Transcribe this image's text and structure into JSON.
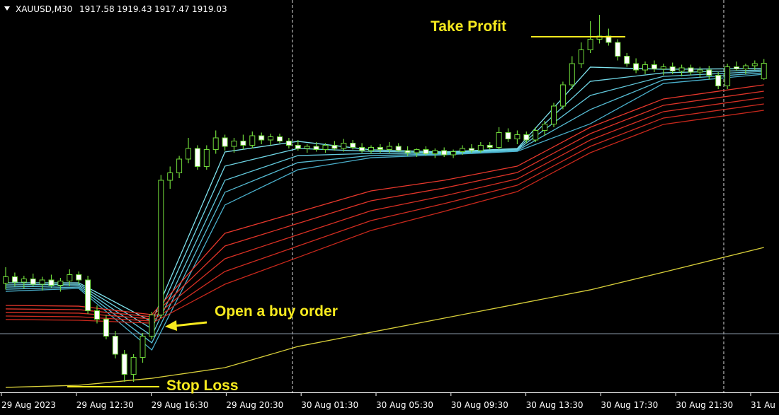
{
  "chart_data": {
    "type": "candlestick",
    "symbol": "XAUUSD,M30",
    "ohlc_info": [
      1917.58,
      1919.43,
      1917.47,
      1919.03
    ],
    "ylim": [
      1888,
      1925
    ],
    "up_color": "#000000",
    "down_color": "#ffffff",
    "wick_color": "#6fd83a",
    "candles": [
      [
        1898.3,
        1899.8,
        1897.7,
        1898.9
      ],
      [
        1898.9,
        1899.3,
        1898.0,
        1898.4
      ],
      [
        1898.4,
        1899.0,
        1897.8,
        1898.7
      ],
      [
        1898.7,
        1899.2,
        1898.0,
        1898.2
      ],
      [
        1898.2,
        1898.9,
        1897.6,
        1898.6
      ],
      [
        1898.6,
        1899.1,
        1897.9,
        1898.1
      ],
      [
        1898.1,
        1898.8,
        1897.5,
        1898.5
      ],
      [
        1898.5,
        1899.6,
        1898.0,
        1899.1
      ],
      [
        1899.1,
        1899.4,
        1898.2,
        1898.6
      ],
      [
        1898.6,
        1899.0,
        1895.4,
        1895.7
      ],
      [
        1895.7,
        1896.2,
        1894.5,
        1894.9
      ],
      [
        1894.9,
        1895.3,
        1893.0,
        1893.3
      ],
      [
        1893.3,
        1893.8,
        1891.2,
        1891.6
      ],
      [
        1891.6,
        1892.0,
        1889.0,
        1889.7
      ],
      [
        1889.7,
        1891.6,
        1889.0,
        1891.3
      ],
      [
        1891.3,
        1893.6,
        1890.8,
        1893.3
      ],
      [
        1893.3,
        1895.6,
        1893.0,
        1895.3
      ],
      [
        1895.3,
        1908.5,
        1895.0,
        1908.0
      ],
      [
        1908.0,
        1909.3,
        1907.2,
        1908.7
      ],
      [
        1908.7,
        1910.3,
        1908.2,
        1910.0
      ],
      [
        1910.0,
        1912.0,
        1909.6,
        1911.0
      ],
      [
        1911.0,
        1911.3,
        1909.0,
        1909.3
      ],
      [
        1909.3,
        1911.3,
        1909.0,
        1910.9
      ],
      [
        1910.9,
        1912.7,
        1910.5,
        1912.0
      ],
      [
        1912.0,
        1912.3,
        1910.8,
        1911.2
      ],
      [
        1911.2,
        1912.0,
        1910.6,
        1911.7
      ],
      [
        1911.7,
        1912.3,
        1910.9,
        1911.3
      ],
      [
        1911.3,
        1912.6,
        1911.0,
        1912.2
      ],
      [
        1912.2,
        1912.5,
        1911.4,
        1911.8
      ],
      [
        1911.8,
        1912.4,
        1911.3,
        1912.1
      ],
      [
        1912.1,
        1912.4,
        1911.5,
        1911.7
      ],
      [
        1911.7,
        1912.0,
        1911.0,
        1911.3
      ],
      [
        1911.3,
        1911.8,
        1910.8,
        1911.0
      ],
      [
        1911.0,
        1911.4,
        1910.6,
        1911.2
      ],
      [
        1911.2,
        1911.6,
        1910.7,
        1910.9
      ],
      [
        1910.9,
        1911.5,
        1910.6,
        1911.3
      ],
      [
        1911.3,
        1911.7,
        1910.8,
        1911.0
      ],
      [
        1911.0,
        1911.9,
        1910.7,
        1911.5
      ],
      [
        1911.5,
        1911.8,
        1910.9,
        1911.1
      ],
      [
        1911.1,
        1911.5,
        1910.6,
        1910.8
      ],
      [
        1910.8,
        1911.3,
        1910.5,
        1911.1
      ],
      [
        1911.1,
        1911.4,
        1910.6,
        1910.9
      ],
      [
        1910.9,
        1911.6,
        1910.6,
        1911.2
      ],
      [
        1911.2,
        1911.5,
        1910.7,
        1910.8
      ],
      [
        1910.8,
        1911.2,
        1910.3,
        1910.6
      ],
      [
        1910.6,
        1911.0,
        1910.2,
        1910.9
      ],
      [
        1910.9,
        1911.2,
        1910.3,
        1910.5
      ],
      [
        1910.5,
        1911.0,
        1910.1,
        1910.8
      ],
      [
        1910.8,
        1911.1,
        1910.2,
        1910.4
      ],
      [
        1910.4,
        1910.9,
        1910.1,
        1910.7
      ],
      [
        1910.7,
        1911.3,
        1910.4,
        1911.0
      ],
      [
        1911.0,
        1911.4,
        1910.6,
        1910.8
      ],
      [
        1910.8,
        1911.6,
        1910.6,
        1911.3
      ],
      [
        1911.3,
        1911.6,
        1910.9,
        1911.1
      ],
      [
        1911.1,
        1913.0,
        1910.9,
        1912.5
      ],
      [
        1912.5,
        1912.9,
        1911.6,
        1911.9
      ],
      [
        1911.9,
        1912.7,
        1911.4,
        1912.3
      ],
      [
        1912.3,
        1912.6,
        1911.5,
        1911.8
      ],
      [
        1911.8,
        1913.0,
        1911.6,
        1912.7
      ],
      [
        1912.7,
        1913.6,
        1912.2,
        1913.3
      ],
      [
        1913.3,
        1915.3,
        1913.0,
        1915.0
      ],
      [
        1915.0,
        1917.3,
        1914.7,
        1917.0
      ],
      [
        1917.0,
        1919.7,
        1916.6,
        1919.0
      ],
      [
        1919.0,
        1921.0,
        1918.6,
        1920.3
      ],
      [
        1920.3,
        1923.0,
        1920.0,
        1921.3
      ],
      [
        1921.3,
        1923.6,
        1920.9,
        1921.6
      ],
      [
        1921.6,
        1922.3,
        1920.7,
        1921.0
      ],
      [
        1921.0,
        1921.3,
        1919.3,
        1919.7
      ],
      [
        1919.7,
        1920.0,
        1918.7,
        1919.0
      ],
      [
        1919.0,
        1919.5,
        1918.1,
        1918.4
      ],
      [
        1918.4,
        1919.2,
        1918.0,
        1918.9
      ],
      [
        1918.9,
        1919.3,
        1918.2,
        1918.5
      ],
      [
        1918.5,
        1919.0,
        1917.9,
        1918.7
      ],
      [
        1918.7,
        1919.1,
        1918.0,
        1918.3
      ],
      [
        1918.3,
        1918.9,
        1917.8,
        1918.6
      ],
      [
        1918.6,
        1918.9,
        1917.9,
        1918.2
      ],
      [
        1918.2,
        1918.7,
        1917.7,
        1918.4
      ],
      [
        1918.4,
        1918.8,
        1917.5,
        1917.9
      ],
      [
        1917.9,
        1918.2,
        1916.6,
        1916.9
      ],
      [
        1916.9,
        1919.0,
        1916.6,
        1918.7
      ],
      [
        1918.7,
        1919.2,
        1918.3,
        1918.5
      ],
      [
        1918.5,
        1919.0,
        1918.0,
        1918.8
      ],
      [
        1918.8,
        1919.3,
        1918.4,
        1919.0
      ],
      [
        1917.58,
        1919.43,
        1917.47,
        1919.03
      ]
    ],
    "ma_x": [
      0,
      8,
      16,
      24,
      32,
      40,
      48,
      56,
      64,
      72,
      83
    ],
    "moving_averages": [
      {
        "color": "#7fe3ee",
        "values": [
          1898.33,
          1898.33,
          1894.67,
          1910.67,
          1911.67,
          1910.87,
          1910.67,
          1911.0,
          1918.67,
          1918.47,
          1918.53
        ]
      },
      {
        "color": "#6fd6e6",
        "values": [
          1898.13,
          1898.2,
          1894.0,
          1909.33,
          1911.0,
          1910.73,
          1910.6,
          1910.93,
          1917.33,
          1918.13,
          1918.4
        ]
      },
      {
        "color": "#62c9dd",
        "values": [
          1897.93,
          1898.07,
          1893.33,
          1908.0,
          1910.33,
          1910.53,
          1910.53,
          1910.87,
          1916.0,
          1917.8,
          1918.27
        ]
      },
      {
        "color": "#56bcd4",
        "values": [
          1897.73,
          1897.93,
          1892.67,
          1906.87,
          1909.67,
          1910.33,
          1910.47,
          1910.8,
          1914.67,
          1917.47,
          1918.13
        ]
      },
      {
        "color": "#4aafcb",
        "values": [
          1897.53,
          1897.8,
          1892.0,
          1905.67,
          1909.0,
          1910.13,
          1910.4,
          1910.73,
          1913.33,
          1917.13,
          1918.0
        ]
      },
      {
        "color": "#e8382c",
        "values": [
          1896.2,
          1896.13,
          1895.33,
          1903.0,
          1905.0,
          1907.0,
          1908.0,
          1909.33,
          1913.0,
          1915.67,
          1917.0
        ]
      },
      {
        "color": "#e03428",
        "values": [
          1895.87,
          1895.8,
          1895.13,
          1901.8,
          1903.93,
          1906.07,
          1907.27,
          1908.73,
          1912.4,
          1915.07,
          1916.4
        ]
      },
      {
        "color": "#d83024",
        "values": [
          1895.53,
          1895.47,
          1894.93,
          1900.6,
          1902.87,
          1905.13,
          1906.53,
          1908.13,
          1911.8,
          1914.47,
          1915.8
        ]
      },
      {
        "color": "#d02c20",
        "values": [
          1895.2,
          1895.13,
          1894.73,
          1899.4,
          1901.8,
          1904.2,
          1905.8,
          1907.53,
          1911.2,
          1913.87,
          1915.2
        ]
      },
      {
        "color": "#c8281c",
        "values": [
          1894.87,
          1894.8,
          1894.53,
          1898.2,
          1900.73,
          1903.27,
          1905.07,
          1906.93,
          1910.6,
          1913.27,
          1914.6
        ]
      },
      {
        "color": "#d8cf3a",
        "values": [
          1888.47,
          1888.67,
          1889.33,
          1890.33,
          1892.33,
          1893.67,
          1895.0,
          1896.33,
          1897.67,
          1899.33,
          1901.67
        ]
      }
    ],
    "price_line": 1893.53,
    "take_profit": {
      "label": "Take Profit",
      "level": 1921.53
    },
    "stop_loss": {
      "label": "Stop Loss",
      "level": 1888.53
    },
    "entry_note": "Open a buy order",
    "x_labels": [
      "29 Aug 2023",
      "29 Aug 12:30",
      "29 Aug 16:30",
      "29 Aug 20:30",
      "30 Aug 01:30",
      "30 Aug 05:30",
      "30 Aug 09:30",
      "30 Aug 13:30",
      "30 Aug 17:30",
      "30 Aug 21:30",
      "31 Au"
    ]
  }
}
